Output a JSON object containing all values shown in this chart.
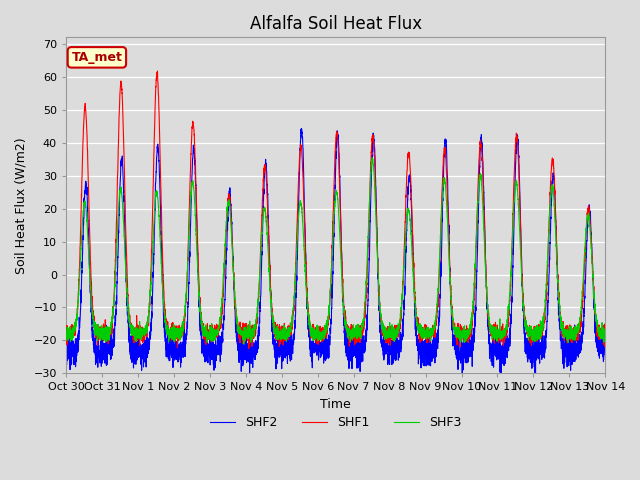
{
  "title": "Alfalfa Soil Heat Flux",
  "ylabel": "Soil Heat Flux (W/m2)",
  "xlabel": "Time",
  "ylim": [
    -30,
    72
  ],
  "yticks": [
    -30,
    -20,
    -10,
    0,
    10,
    20,
    30,
    40,
    50,
    60,
    70
  ],
  "line_colors": {
    "SHF1": "#FF0000",
    "SHF2": "#0000FF",
    "SHF3": "#00CC00"
  },
  "line_width": 0.8,
  "bg_color": "#DCDCDC",
  "annotation_label": "TA_met",
  "annotation_bg": "#FFFFCC",
  "annotation_border": "#CC0000",
  "title_fontsize": 12,
  "axis_label_fontsize": 9,
  "tick_fontsize": 8,
  "legend_fontsize": 9,
  "num_days": 15,
  "n_pts": 288,
  "daily_peaks_shf1": [
    51,
    58,
    61,
    46,
    24,
    33,
    39,
    43,
    42,
    37,
    38,
    40,
    42,
    35,
    20
  ],
  "daily_peaks_shf2": [
    27,
    35,
    39,
    38,
    24,
    34,
    44,
    43,
    42,
    30,
    41,
    41,
    42,
    30,
    20
  ],
  "daily_peaks_shf3": [
    22,
    26,
    25,
    28,
    22,
    20,
    22,
    25,
    35,
    20,
    29,
    30,
    28,
    27,
    18
  ],
  "night_base_shf1": -18,
  "night_base_shf2": -23,
  "night_base_shf3": -18,
  "x_tick_labels": [
    "Oct 30",
    "Oct 31",
    "Nov 1",
    "Nov 2",
    "Nov 3",
    "Nov 4",
    "Nov 5",
    "Nov 6",
    "Nov 7",
    "Nov 8",
    "Nov 9",
    "Nov 10",
    "Nov 11",
    "Nov 12",
    "Nov 13",
    "Nov 14"
  ],
  "x_tick_positions": [
    0,
    1,
    2,
    3,
    4,
    5,
    6,
    7,
    8,
    9,
    10,
    11,
    12,
    13,
    14,
    15
  ]
}
